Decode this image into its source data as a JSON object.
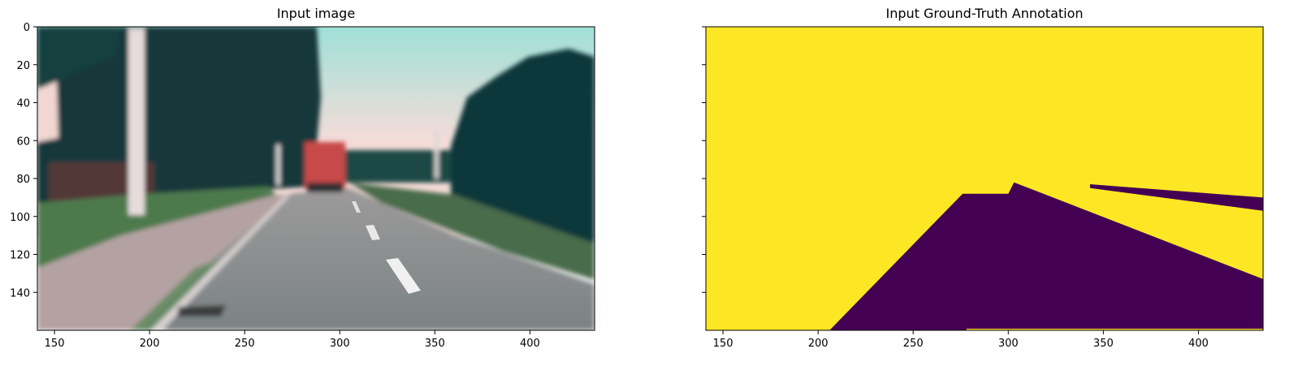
{
  "chart_data": [
    {
      "type": "image",
      "title": "Input image",
      "xlim": [
        141,
        434
      ],
      "ylim": [
        160,
        0
      ],
      "xticks": [
        150,
        200,
        250,
        300,
        350,
        400
      ],
      "yticks": [
        0,
        20,
        40,
        60,
        80,
        100,
        120,
        140
      ],
      "scene": {
        "sky_colors": [
          "#9fe0d8",
          "#f6dcd8"
        ],
        "foliage_color": "#12383a",
        "grass_color": "#4d7a4e",
        "road_color": "#8a8c8c",
        "sidewalk_color": "#b4a2a2",
        "truck_color": "#c84848",
        "lane_mark_color": "#f0f0f0"
      }
    },
    {
      "type": "heatmap",
      "title": "Input Ground-Truth Annotation",
      "xlim": [
        141,
        434
      ],
      "ylim": [
        160,
        0
      ],
      "xticks": [
        150,
        200,
        250,
        300,
        350,
        400
      ],
      "yticks": [
        0,
        20,
        40,
        60,
        80,
        100,
        120,
        140
      ],
      "colormap": "viridis",
      "classes": [
        {
          "value": 0,
          "color": "#440154"
        },
        {
          "value": 1,
          "color": "#fde725"
        }
      ],
      "regions": [
        {
          "value": 0,
          "polygon": [
            [
              206,
              160
            ],
            [
              276,
              88
            ],
            [
              300,
              88
            ],
            [
              303,
              82
            ],
            [
              434,
              133
            ],
            [
              434,
              160
            ]
          ]
        },
        {
          "value": 0,
          "polygon": [
            [
              343,
              83
            ],
            [
              434,
              90
            ],
            [
              434,
              97
            ],
            [
              343,
              85
            ]
          ]
        },
        {
          "value": 1,
          "polygon": [
            [
              278,
              159.2
            ],
            [
              434,
              159.2
            ],
            [
              434,
              159.8
            ],
            [
              278,
              159.8
            ]
          ]
        }
      ]
    }
  ]
}
